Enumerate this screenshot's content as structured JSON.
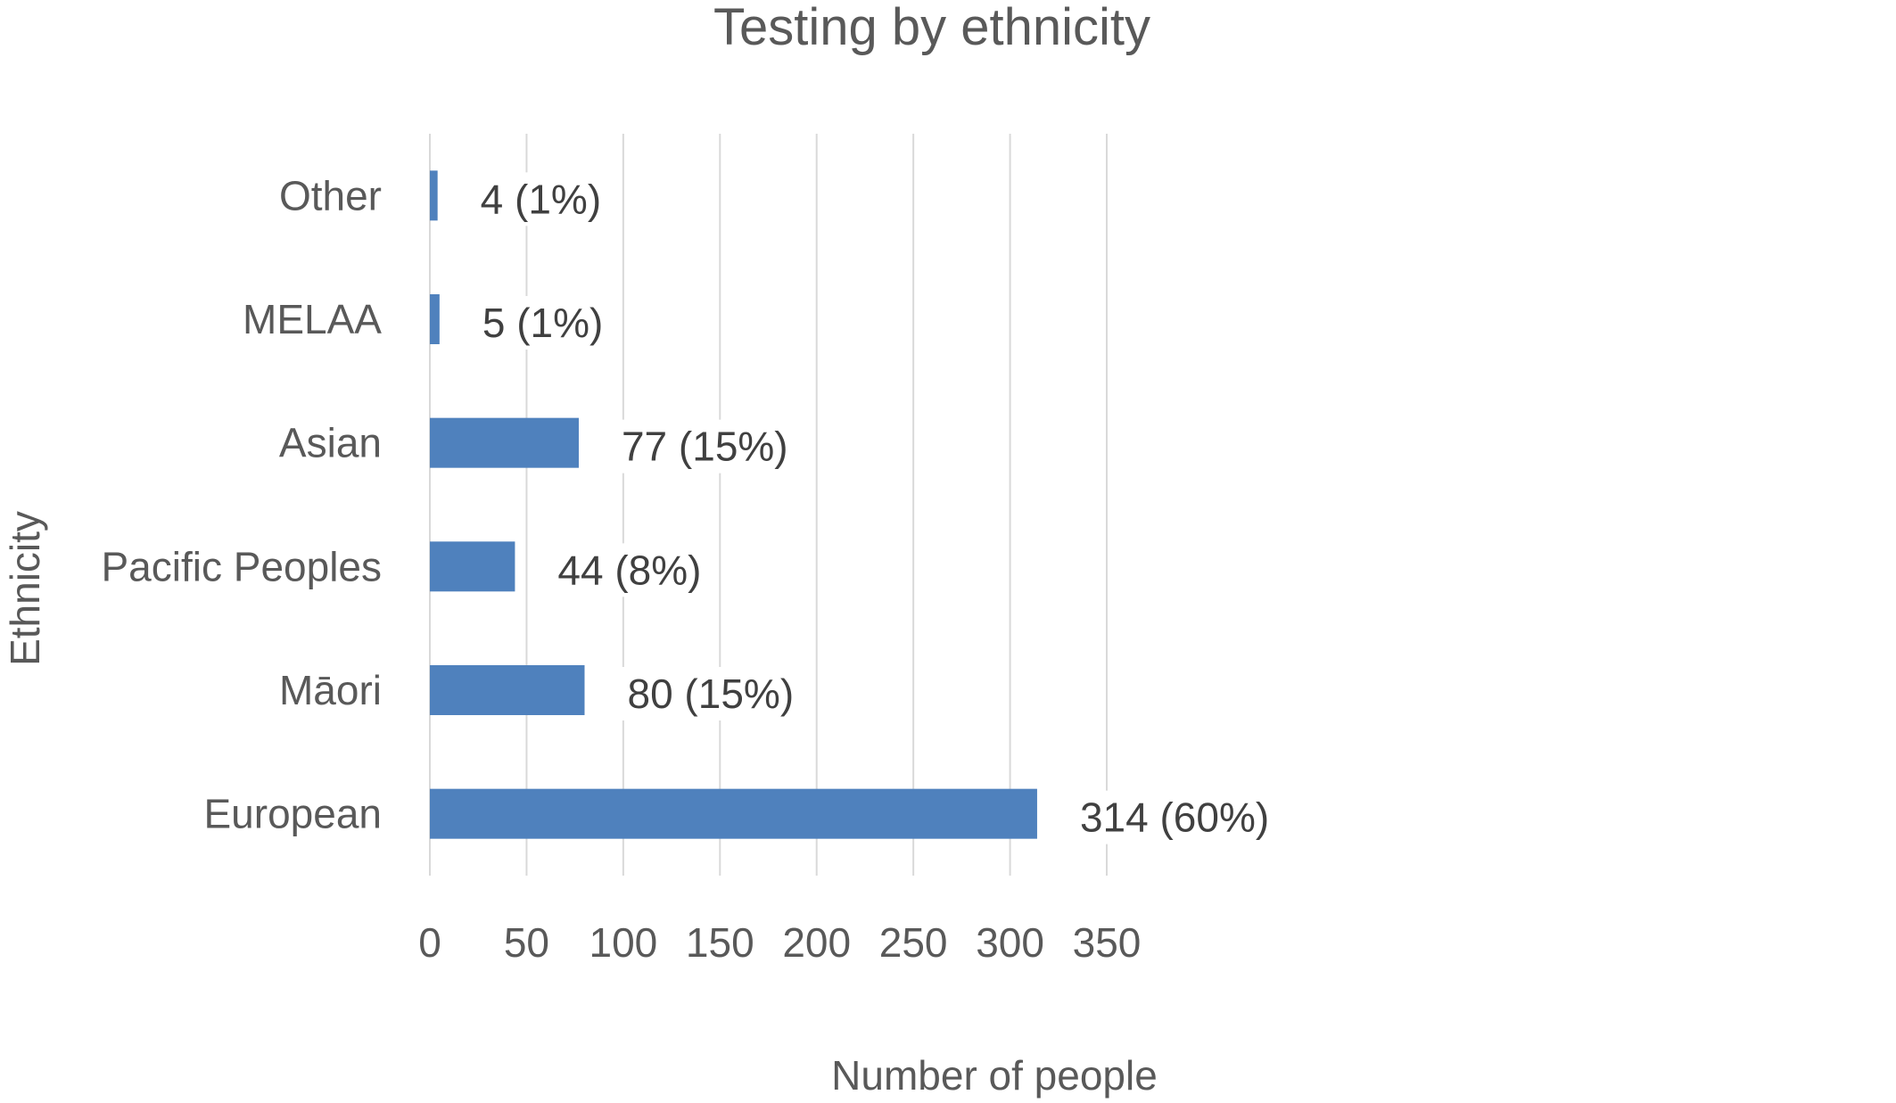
{
  "chart_data": {
    "type": "bar",
    "orientation": "horizontal",
    "title": "Testing by ethnicity",
    "xlabel": "Number of people",
    "ylabel": "Ethnicity",
    "categories": [
      "European",
      "Māori",
      "Pacific Peoples",
      "Asian",
      "MELAA",
      "Other"
    ],
    "values": [
      314,
      80,
      44,
      77,
      5,
      4
    ],
    "data_labels": [
      "314 (60%)",
      "80 (15%)",
      "44 (8%)",
      "77 (15%)",
      "5 (1%)",
      "4 (1%)"
    ],
    "x_ticks": [
      "0",
      "50",
      "100",
      "150",
      "200",
      "250",
      "300",
      "350"
    ],
    "xlim": [
      0,
      350
    ],
    "grid": "vertical",
    "legend": "none",
    "bar_color": "#4f81bd"
  }
}
